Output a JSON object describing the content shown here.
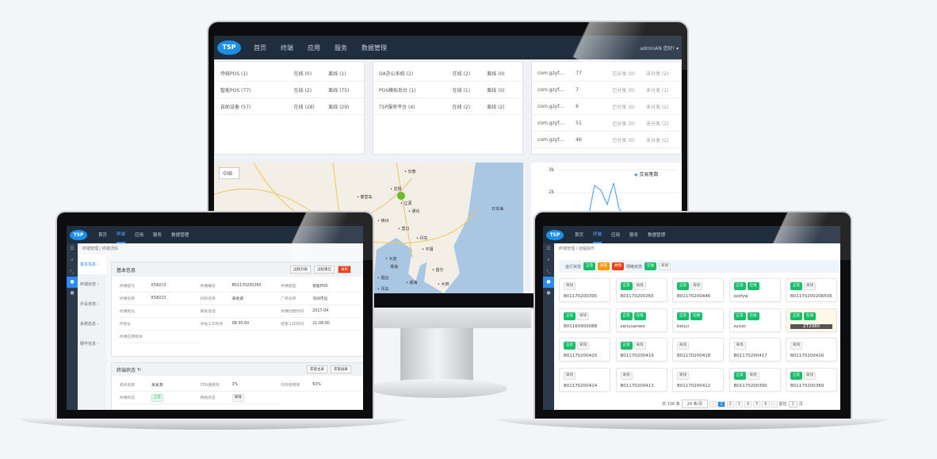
{
  "nav": {
    "logo": "TSP",
    "items": [
      "首页",
      "终端",
      "应用",
      "服务",
      "数据管理"
    ],
    "user": "adminAN 您好! ▾"
  },
  "monitor": {
    "terminal_stats": [
      {
        "name": "传统POS (1)",
        "online": "在线 (0)",
        "offline": "离线 (1)"
      },
      {
        "name": "智能POS (77)",
        "online": "在线 (2)",
        "offline": "离线 (75)"
      },
      {
        "name": "自助设备 (57)",
        "online": "在线 (28)",
        "offline": "离线 (29)"
      }
    ],
    "app_stats": [
      {
        "name": "OA办公系统 (2)",
        "online": "在线 (2)",
        "offline": "离线 (0)"
      },
      {
        "name": "POS模拟后台 (1)",
        "online": "在线 (1)",
        "offline": "离线 (0)"
      },
      {
        "name": "TSP服务平台 (4)",
        "online": "在线 (2)",
        "offline": "离线 (2)"
      }
    ],
    "package_stats": [
      {
        "name": "com.gzyf....",
        "count": "77",
        "sent": "已分发 (0)",
        "unsent": "未分发 (2)"
      },
      {
        "name": "com.gzyf....",
        "count": "7",
        "sent": "已分发 (0)",
        "unsent": "未分发 (1)"
      },
      {
        "name": "com.gzyf....",
        "count": "6",
        "sent": "已分发 (0)",
        "unsent": "未分发 (2)"
      },
      {
        "name": "com.gzyf....",
        "count": "51",
        "sent": "已分发 (0)",
        "unsent": "未分发 (2)"
      },
      {
        "name": "com.gzyf....",
        "count": "46",
        "sent": "已分发 (0)",
        "unsent": "未分发 (2)"
      }
    ],
    "map": {
      "region_select": "中国",
      "cities": [
        "长春",
        "沈阳",
        "辽源",
        "通化",
        "锦州",
        "营口",
        "丹东",
        "大连",
        "秦皇岛",
        "平壤",
        "首尔",
        "大田",
        "烟台",
        "威海",
        "青岛",
        "渤海",
        "日本海"
      ]
    },
    "chart": {
      "yticks": [
        "3k",
        "2k"
      ],
      "legend": "交易笔数",
      "color": "#5aa5f0"
    }
  },
  "left_laptop": {
    "nav_active": 1,
    "breadcrumb": [
      "终端管理",
      "终端详情"
    ],
    "side_menu": [
      "基本信息",
      "终端状态",
      "外设状态",
      "系统信息",
      "硬件信息"
    ],
    "basic": {
      "title": "基本信息",
      "buttons": [
        "远程升级",
        "远程重启",
        "关机"
      ],
      "fields": [
        [
          "终端型号",
          "K58223"
        ],
        [
          "终端编号",
          "B01170200265"
        ],
        [
          "终端类型",
          "智能POS"
        ],
        [
          "终端名称",
          "K58223"
        ],
        [
          "机构名称",
          "来发源"
        ],
        [
          "厂商名称",
          "深圳市证"
        ],
        [
          "终端地址",
          ""
        ],
        [
          "联系电话",
          ""
        ],
        [
          "终端创建时间",
          "2017-04"
        ],
        [
          "IP地址",
          ""
        ],
        [
          "开始工作时间",
          "08:30:00"
        ],
        [
          "结束工作时间",
          "21:04:00"
        ],
        [
          "终端应用版本",
          ""
        ]
      ]
    },
    "status": {
      "title": "终端状态",
      "buttons": [
        "获取主屏",
        "获取副屏"
      ],
      "fields": [
        [
          "机构名称",
          "来发源"
        ],
        [
          "CPU使用率",
          "3%"
        ],
        [
          "内存使用率",
          "63%"
        ],
        [
          "终端状态",
          "正常"
        ],
        [
          "网络状态",
          "离线"
        ]
      ]
    }
  },
  "right_laptop": {
    "nav_active": 1,
    "breadcrumb": [
      "终端管理",
      "远程操作"
    ],
    "filter": {
      "run_label": "运行状态",
      "run_tags": [
        "正常",
        "报警",
        "故障"
      ],
      "net_label": "网络状态",
      "net_tags": [
        "在线",
        "离线"
      ]
    },
    "devices": [
      {
        "id": "B01170200395",
        "tags": [
          "离线"
        ]
      },
      {
        "id": "B01170200265",
        "tags": [
          "正常",
          "离线"
        ]
      },
      {
        "id": "B01170200446",
        "tags": [
          "正常",
          "离线"
        ]
      },
      {
        "id": "szzfyw",
        "tags": [
          "正常",
          "在线"
        ]
      },
      {
        "id": "B01170200206506",
        "tags": [
          "正常",
          "离线"
        ]
      },
      {
        "id": "B01160900088",
        "tags": [
          "正常",
          "离线"
        ]
      },
      {
        "id": "sanyuanwe",
        "tags": [
          "正常",
          "在线"
        ]
      },
      {
        "id": "beiyu",
        "tags": [
          "正常",
          "在线"
        ]
      },
      {
        "id": "syxxc",
        "tags": [
          "正常",
          "在线"
        ]
      },
      {
        "id": "ZT2980",
        "tags": [
          "正常",
          "在线"
        ]
      },
      {
        "id": "B01170200420",
        "tags": [
          "正常",
          "离线"
        ]
      },
      {
        "id": "B01170200419",
        "tags": [
          "正常",
          "离线"
        ]
      },
      {
        "id": "B01170200418",
        "tags": [
          "离线"
        ]
      },
      {
        "id": "B01170200417",
        "tags": [
          "离线"
        ]
      },
      {
        "id": "B01170200416",
        "tags": [
          "离线"
        ]
      },
      {
        "id": "B01170200414",
        "tags": [
          "离线"
        ]
      },
      {
        "id": "B01170200413",
        "tags": [
          "离线"
        ]
      },
      {
        "id": "B01170200412",
        "tags": [
          "离线"
        ]
      },
      {
        "id": "B01170200390",
        "tags": [
          "正常",
          "离线"
        ]
      },
      {
        "id": "B01170200389",
        "tags": [
          "正常",
          "离线"
        ]
      }
    ],
    "pagination": {
      "total": "共 136 条",
      "page_size": "24 条/页",
      "pages": [
        "1",
        "2",
        "3",
        "4",
        "5",
        "6"
      ],
      "current": "1",
      "goto_label": "前往",
      "goto_value": "1",
      "page_unit": "页"
    }
  }
}
